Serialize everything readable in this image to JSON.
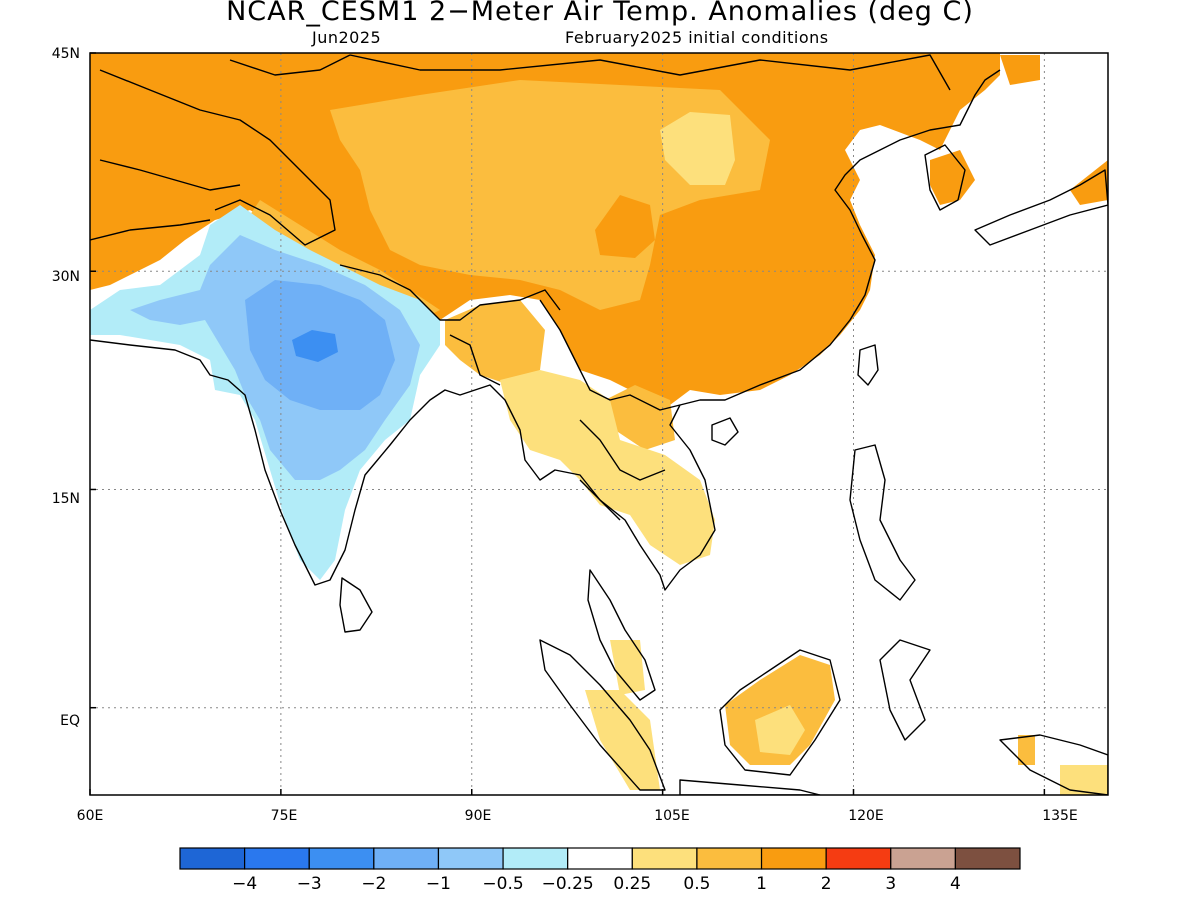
{
  "title": "NCAR_CESM1 2−Meter Air Temp. Anomalies (deg C)",
  "subtitle_left": "Jun2025",
  "subtitle_right": "February2025 initial conditions",
  "axes": {
    "lon_range": [
      60,
      140
    ],
    "lat_range": [
      -6,
      45
    ],
    "x_ticks": [
      "60E",
      "75E",
      "90E",
      "105E",
      "120E",
      "135E"
    ],
    "x_tick_values": [
      60,
      75,
      90,
      105,
      120,
      135
    ],
    "y_ticks": [
      "45N",
      "30N",
      "15N",
      "EQ"
    ],
    "y_tick_values": [
      45,
      30,
      15,
      0
    ],
    "grid": "dotted"
  },
  "colorbar": {
    "colors": [
      "#1e66d6",
      "#2a78ee",
      "#3c8ff2",
      "#6fb0f6",
      "#8fc8f8",
      "#b2ecf8",
      "#ffffff",
      "#fde07c",
      "#fbbd3e",
      "#f99c10",
      "#f53c12",
      "#caa292",
      "#7d5040"
    ],
    "labels": [
      "−4",
      "−3",
      "−2",
      "−1",
      "−0.5",
      "−0.25",
      "0.25",
      "0.5",
      "1",
      "2",
      "3",
      "4"
    ]
  }
}
